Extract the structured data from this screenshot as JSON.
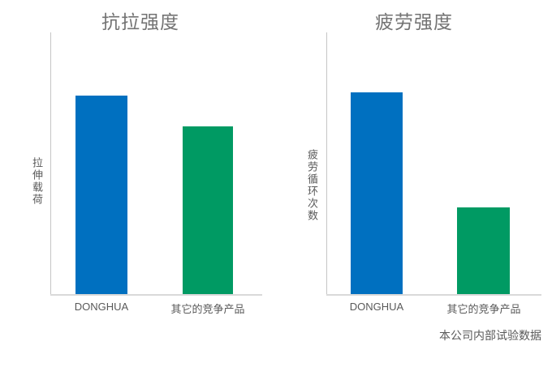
{
  "colors": {
    "donghua_blue": "#0070C0",
    "competitor_green": "#009A63",
    "axis_line": "#C6C6C6",
    "baseline": "#D9D9D9",
    "title_text": "#737373",
    "label_text": "#595959"
  },
  "footnote": "本公司内部试验数据",
  "chart_data": [
    {
      "type": "bar",
      "title": "抗拉强度",
      "ylabel": "拉伸载荷",
      "xlabel": "",
      "categories": [
        "DONGHUA",
        "其它的竞争产品"
      ],
      "values": [
        0.76,
        0.64
      ],
      "ylim": [
        0,
        1
      ],
      "grid": false,
      "legend": "none",
      "axis_ticks": "none",
      "colors": [
        "#0070C0",
        "#009A63"
      ]
    },
    {
      "type": "bar",
      "title": "疲劳强度",
      "ylabel": "疲劳循环次数",
      "xlabel": "",
      "categories": [
        "DONGHUA",
        "其它的竞争产品"
      ],
      "values": [
        0.77,
        0.33
      ],
      "ylim": [
        0,
        1
      ],
      "grid": false,
      "legend": "none",
      "axis_ticks": "none",
      "colors": [
        "#0070C0",
        "#009A63"
      ]
    }
  ]
}
